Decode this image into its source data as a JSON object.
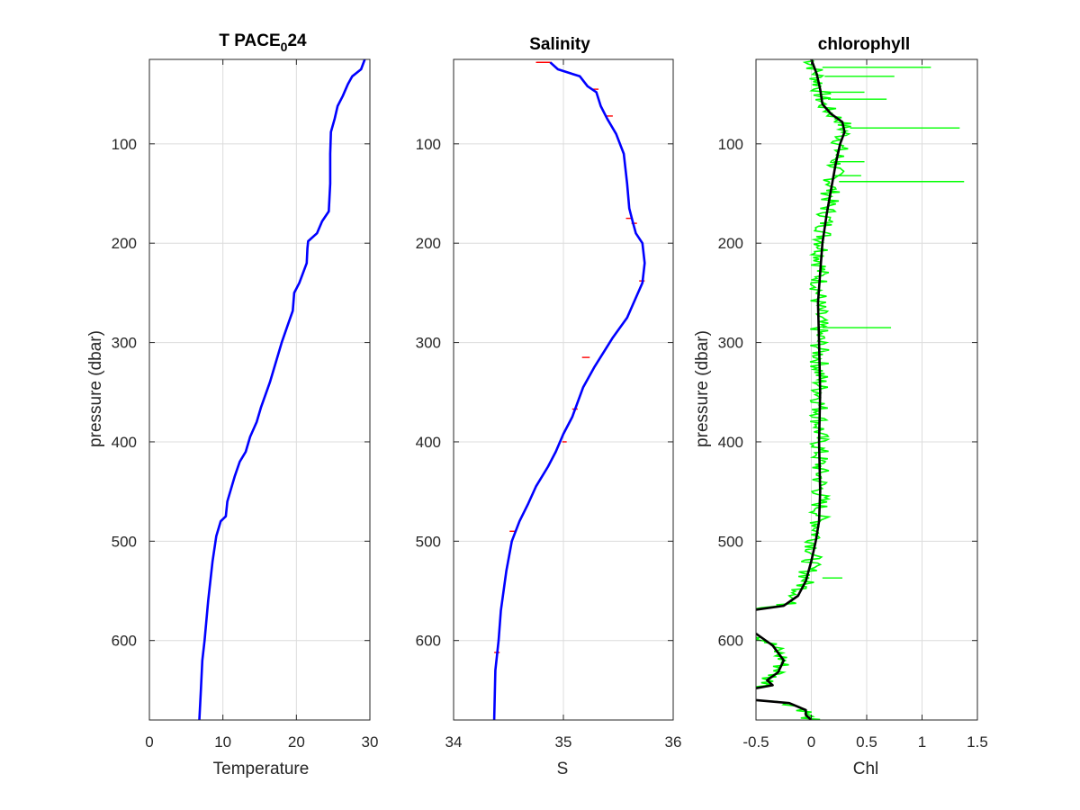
{
  "colors": {
    "temperature_line": "#0000ff",
    "salinity_line": "#0000ff",
    "salinity_raw": "#ff0000",
    "chl_raw": "#00ff00",
    "chl_smooth": "#000000",
    "axis": "#262626",
    "grid": "#dcdcdc"
  },
  "chart_data": [
    {
      "type": "line",
      "title_main": "T PACE",
      "title_sub": "0",
      "title_tail": "24",
      "xlabel": "Temperature",
      "ylabel": "pressure (dbar)",
      "xlim": [
        0,
        30
      ],
      "ylim": [
        15,
        680
      ],
      "y_reversed": true,
      "grid": true,
      "xticks": [
        0,
        10,
        20,
        30
      ],
      "xtick_labels": [
        "0",
        "10",
        "20",
        "30"
      ],
      "yticks": [
        100,
        200,
        300,
        400,
        500,
        600
      ],
      "ytick_labels": [
        "100",
        "200",
        "300",
        "400",
        "500",
        "600"
      ],
      "series": [
        {
          "role": "profile",
          "points": [
            [
              29.3,
              15
            ],
            [
              28.8,
              25
            ],
            [
              27.6,
              32
            ],
            [
              27.0,
              40
            ],
            [
              26.3,
              52
            ],
            [
              25.6,
              62
            ],
            [
              25.2,
              75
            ],
            [
              24.7,
              88
            ],
            [
              24.6,
              110
            ],
            [
              24.6,
              140
            ],
            [
              24.4,
              168
            ],
            [
              23.5,
              178
            ],
            [
              22.8,
              190
            ],
            [
              21.6,
              198
            ],
            [
              21.5,
              205
            ],
            [
              21.4,
              220
            ],
            [
              20.4,
              240
            ],
            [
              19.7,
              250
            ],
            [
              19.5,
              268
            ],
            [
              18.8,
              283
            ],
            [
              18.0,
              300
            ],
            [
              17.4,
              315
            ],
            [
              16.4,
              340
            ],
            [
              15.2,
              365
            ],
            [
              14.6,
              380
            ],
            [
              13.7,
              395
            ],
            [
              13.1,
              410
            ],
            [
              12.3,
              420
            ],
            [
              11.6,
              435
            ],
            [
              10.6,
              460
            ],
            [
              10.4,
              475
            ],
            [
              9.7,
              480
            ],
            [
              9.1,
              495
            ],
            [
              8.6,
              520
            ],
            [
              8.0,
              560
            ],
            [
              7.5,
              600
            ],
            [
              7.2,
              620
            ],
            [
              7.0,
              650
            ],
            [
              6.8,
              680
            ]
          ]
        }
      ]
    },
    {
      "type": "line",
      "title": "Salinity",
      "xlabel": "S",
      "ylabel": "",
      "xlim": [
        34,
        36
      ],
      "ylim": [
        15,
        680
      ],
      "y_reversed": true,
      "grid": true,
      "xticks": [
        34,
        35,
        36
      ],
      "xtick_labels": [
        "34",
        "35",
        "36"
      ],
      "yticks": [
        100,
        200,
        300,
        400,
        500,
        600
      ],
      "ytick_labels": [
        "100",
        "200",
        "300",
        "400",
        "500",
        "600"
      ],
      "series": [
        {
          "role": "raw",
          "points": [
            [
              34.75,
              18
            ],
            [
              34.88,
              18
            ],
            [
              34.95,
              25
            ],
            [
              35.15,
              32
            ],
            [
              35.22,
              42
            ],
            [
              35.3,
              48
            ],
            [
              35.34,
              62
            ],
            [
              35.4,
              75
            ],
            [
              35.48,
              90
            ],
            [
              35.55,
              110
            ],
            [
              35.58,
              140
            ],
            [
              35.6,
              165
            ],
            [
              35.63,
              178
            ],
            [
              35.66,
              190
            ],
            [
              35.72,
              200
            ],
            [
              35.74,
              220
            ],
            [
              35.72,
              240
            ],
            [
              35.66,
              255
            ],
            [
              35.58,
              275
            ],
            [
              35.45,
              295
            ],
            [
              35.28,
              325
            ],
            [
              35.18,
              345
            ],
            [
              35.08,
              375
            ],
            [
              35.0,
              392
            ],
            [
              34.93,
              410
            ],
            [
              34.86,
              425
            ],
            [
              34.75,
              445
            ],
            [
              34.68,
              462
            ],
            [
              34.6,
              480
            ],
            [
              34.53,
              500
            ],
            [
              34.48,
              530
            ],
            [
              34.43,
              570
            ],
            [
              34.41,
              600
            ],
            [
              34.38,
              630
            ],
            [
              34.37,
              680
            ]
          ],
          "spikes": [
            [
              34.76,
              34.88,
              18
            ],
            [
              35.27,
              35.32,
              45
            ],
            [
              35.38,
              35.45,
              72
            ],
            [
              35.57,
              35.63,
              175
            ],
            [
              35.62,
              35.67,
              180
            ],
            [
              35.69,
              35.74,
              238
            ],
            [
              35.17,
              35.24,
              315
            ],
            [
              35.08,
              35.13,
              367
            ],
            [
              34.99,
              35.03,
              400
            ],
            [
              34.51,
              34.56,
              490
            ],
            [
              34.37,
              34.42,
              612
            ]
          ]
        },
        {
          "role": "smoothed",
          "points": [
            [
              34.88,
              18
            ],
            [
              34.95,
              25
            ],
            [
              35.15,
              32
            ],
            [
              35.22,
              42
            ],
            [
              35.3,
              48
            ],
            [
              35.34,
              62
            ],
            [
              35.4,
              75
            ],
            [
              35.48,
              90
            ],
            [
              35.55,
              110
            ],
            [
              35.58,
              140
            ],
            [
              35.6,
              165
            ],
            [
              35.63,
              178
            ],
            [
              35.66,
              190
            ],
            [
              35.72,
              200
            ],
            [
              35.74,
              220
            ],
            [
              35.72,
              240
            ],
            [
              35.66,
              255
            ],
            [
              35.58,
              275
            ],
            [
              35.45,
              295
            ],
            [
              35.28,
              325
            ],
            [
              35.18,
              345
            ],
            [
              35.08,
              375
            ],
            [
              35.0,
              392
            ],
            [
              34.93,
              410
            ],
            [
              34.86,
              425
            ],
            [
              34.75,
              445
            ],
            [
              34.68,
              462
            ],
            [
              34.6,
              480
            ],
            [
              34.53,
              500
            ],
            [
              34.48,
              530
            ],
            [
              34.43,
              570
            ],
            [
              34.41,
              600
            ],
            [
              34.38,
              630
            ],
            [
              34.37,
              680
            ]
          ]
        }
      ]
    },
    {
      "type": "line",
      "title": "chlorophyll",
      "xlabel": "Chl",
      "ylabel": "pressure (dbar)",
      "xlim": [
        -0.5,
        1.5
      ],
      "ylim": [
        15,
        680
      ],
      "y_reversed": true,
      "grid": true,
      "xticks": [
        -0.5,
        0,
        0.5,
        1,
        1.5
      ],
      "xtick_labels": [
        "-0.5",
        "0",
        "0.5",
        "1",
        "1.5"
      ],
      "yticks": [
        100,
        200,
        300,
        400,
        500,
        600
      ],
      "ytick_labels": [
        "100",
        "200",
        "300",
        "400",
        "500",
        "600"
      ],
      "series": [
        {
          "role": "smoothed",
          "segments": [
            [
              [
                0.0,
                15
              ],
              [
                0.05,
                30
              ],
              [
                0.08,
                45
              ],
              [
                0.1,
                60
              ],
              [
                0.18,
                70
              ],
              [
                0.28,
                78
              ],
              [
                0.3,
                88
              ],
              [
                0.26,
                100
              ],
              [
                0.22,
                120
              ],
              [
                0.18,
                145
              ],
              [
                0.14,
                170
              ],
              [
                0.1,
                200
              ],
              [
                0.08,
                230
              ],
              [
                0.06,
                260
              ],
              [
                0.07,
                300
              ],
              [
                0.08,
                350
              ],
              [
                0.07,
                400
              ],
              [
                0.08,
                450
              ],
              [
                0.07,
                480
              ],
              [
                0.04,
                500
              ],
              [
                0.0,
                520
              ],
              [
                -0.05,
                540
              ],
              [
                -0.12,
                555
              ],
              [
                -0.25,
                565
              ],
              [
                -0.5,
                569
              ]
            ],
            [
              [
                -0.5,
                593
              ],
              [
                -0.35,
                605
              ],
              [
                -0.25,
                620
              ],
              [
                -0.3,
                632
              ],
              [
                -0.4,
                640
              ],
              [
                -0.35,
                645
              ],
              [
                -0.5,
                648
              ]
            ],
            [
              [
                -0.5,
                660
              ],
              [
                -0.2,
                663
              ],
              [
                -0.05,
                670
              ],
              [
                -0.05,
                675
              ],
              [
                0.0,
                680
              ]
            ]
          ]
        },
        {
          "role": "raw_spikes",
          "spikes": [
            [
              0.1,
              1.08,
              23
            ],
            [
              0.12,
              0.75,
              32
            ],
            [
              0.12,
              0.48,
              48
            ],
            [
              0.15,
              0.68,
              55
            ],
            [
              0.35,
              1.34,
              84
            ],
            [
              0.2,
              0.48,
              118
            ],
            [
              0.2,
              0.45,
              132
            ],
            [
              0.25,
              1.38,
              138
            ],
            [
              0.1,
              0.72,
              285
            ],
            [
              0.1,
              0.28,
              537
            ]
          ]
        },
        {
          "role": "raw_envelope",
          "noise_half_width": 0.09
        }
      ]
    }
  ]
}
